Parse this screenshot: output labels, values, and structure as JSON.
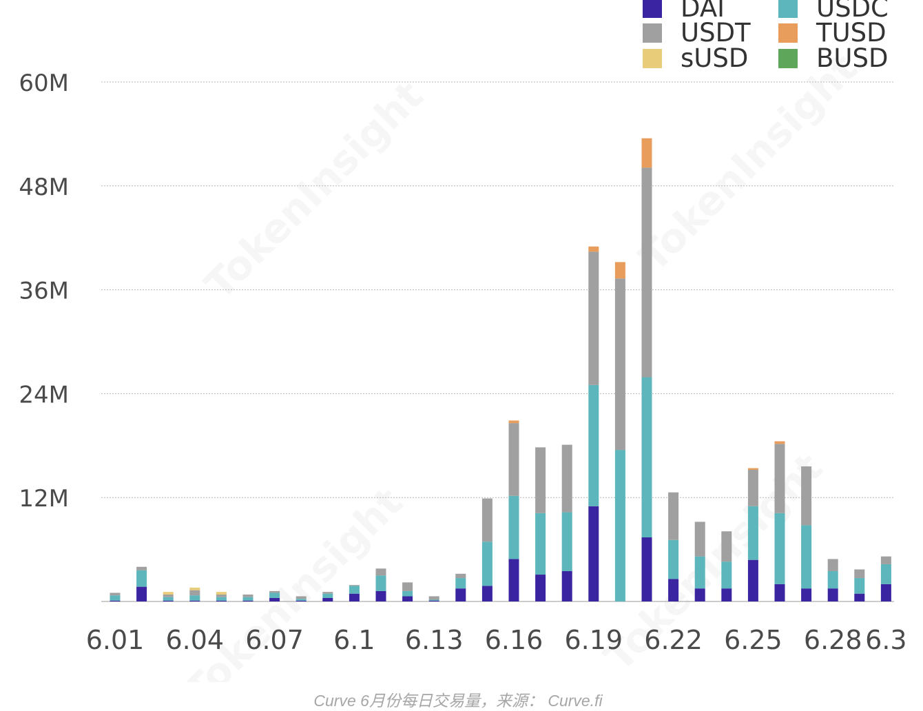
{
  "caption": "Curve 6月份每日交易量，来源： Curve.fi",
  "watermark": "TokenInsight",
  "chart_data": {
    "type": "bar",
    "stacked": true,
    "title": "",
    "xlabel": "",
    "ylabel": "",
    "ylim": [
      0,
      60000000
    ],
    "yticks": [
      {
        "value": 12000000,
        "label": "12M"
      },
      {
        "value": 24000000,
        "label": "24M"
      },
      {
        "value": 36000000,
        "label": "36M"
      },
      {
        "value": 48000000,
        "label": "48M"
      },
      {
        "value": 60000000,
        "label": "60M"
      }
    ],
    "xtick_labels": [
      {
        "index": 0,
        "label": "6.01"
      },
      {
        "index": 3,
        "label": "6.04"
      },
      {
        "index": 6,
        "label": "6.07"
      },
      {
        "index": 9,
        "label": "6.1"
      },
      {
        "index": 12,
        "label": "6.13"
      },
      {
        "index": 15,
        "label": "6.16"
      },
      {
        "index": 18,
        "label": "6.19"
      },
      {
        "index": 21,
        "label": "6.22"
      },
      {
        "index": 24,
        "label": "6.25"
      },
      {
        "index": 27,
        "label": "6.28"
      },
      {
        "index": 29,
        "label": "6.3"
      }
    ],
    "grid": true,
    "legend_position": "top-right",
    "categories": [
      "6.01",
      "6.02",
      "6.03",
      "6.04",
      "6.05",
      "6.06",
      "6.07",
      "6.08",
      "6.09",
      "6.1",
      "6.11",
      "6.12",
      "6.13",
      "6.14",
      "6.15",
      "6.16",
      "6.17",
      "6.18",
      "6.19",
      "6.20",
      "6.21",
      "6.22",
      "6.23",
      "6.24",
      "6.25",
      "6.26",
      "6.27",
      "6.28",
      "6.29",
      "6.3"
    ],
    "series": [
      {
        "name": "DAI",
        "color": "#3a24a0",
        "values": [
          0.1,
          1.7,
          0.1,
          0.1,
          0.1,
          0.1,
          0.4,
          0.1,
          0.4,
          0.9,
          1.2,
          0.6,
          0.1,
          1.5,
          1.8,
          4.9,
          3.1,
          3.5,
          11.0,
          0,
          7.4,
          2.6,
          1.5,
          1.5,
          4.8,
          2.0,
          1.5,
          1.5,
          0.9,
          2.0
        ]
      },
      {
        "name": "USDC",
        "color": "#5cb6bb",
        "values": [
          0.6,
          1.9,
          0.4,
          0.6,
          0.4,
          0.4,
          0.6,
          0.2,
          0.5,
          0.9,
          1.8,
          0.6,
          0.1,
          1.2,
          5.1,
          7.3,
          7.1,
          6.8,
          14.0,
          17.5,
          18.5,
          4.5,
          3.7,
          3.1,
          6.2,
          8.2,
          7.3,
          2.0,
          1.8,
          2.3
        ]
      },
      {
        "name": "USDT",
        "color": "#a0a0a0",
        "values": [
          0.3,
          0.4,
          0.3,
          0.6,
          0.3,
          0.3,
          0.2,
          0.3,
          0.2,
          0.1,
          0.8,
          1.0,
          0.4,
          0.5,
          5.0,
          8.4,
          7.6,
          7.8,
          15.4,
          19.8,
          24.2,
          5.5,
          4.0,
          3.5,
          4.2,
          8.0,
          6.8,
          1.4,
          1.0,
          0.9
        ]
      },
      {
        "name": "TUSD",
        "color": "#e89d5c",
        "values": [
          0,
          0,
          0,
          0,
          0,
          0,
          0,
          0,
          0,
          0,
          0,
          0,
          0,
          0,
          0,
          0.3,
          0,
          0,
          0.6,
          1.9,
          3.4,
          0,
          0,
          0,
          0.2,
          0.3,
          0,
          0,
          0,
          0
        ]
      },
      {
        "name": "sUSD",
        "color": "#e8cc7a",
        "values": [
          0,
          0,
          0.3,
          0.3,
          0.3,
          0,
          0,
          0,
          0,
          0,
          0,
          0,
          0,
          0,
          0,
          0,
          0,
          0,
          0,
          0,
          0,
          0,
          0,
          0,
          0,
          0,
          0,
          0,
          0,
          0
        ]
      },
      {
        "name": "BUSD",
        "color": "#5ea65a",
        "values": [
          0,
          0,
          0,
          0,
          0,
          0,
          0,
          0,
          0,
          0,
          0,
          0,
          0,
          0,
          0,
          0,
          0,
          0,
          0,
          0,
          0,
          0,
          0,
          0,
          0,
          0,
          0,
          0,
          0,
          0
        ]
      }
    ],
    "value_unit": "M",
    "legend_order": [
      "DAI",
      "USDC",
      "USDT",
      "TUSD",
      "sUSD",
      "BUSD"
    ]
  }
}
